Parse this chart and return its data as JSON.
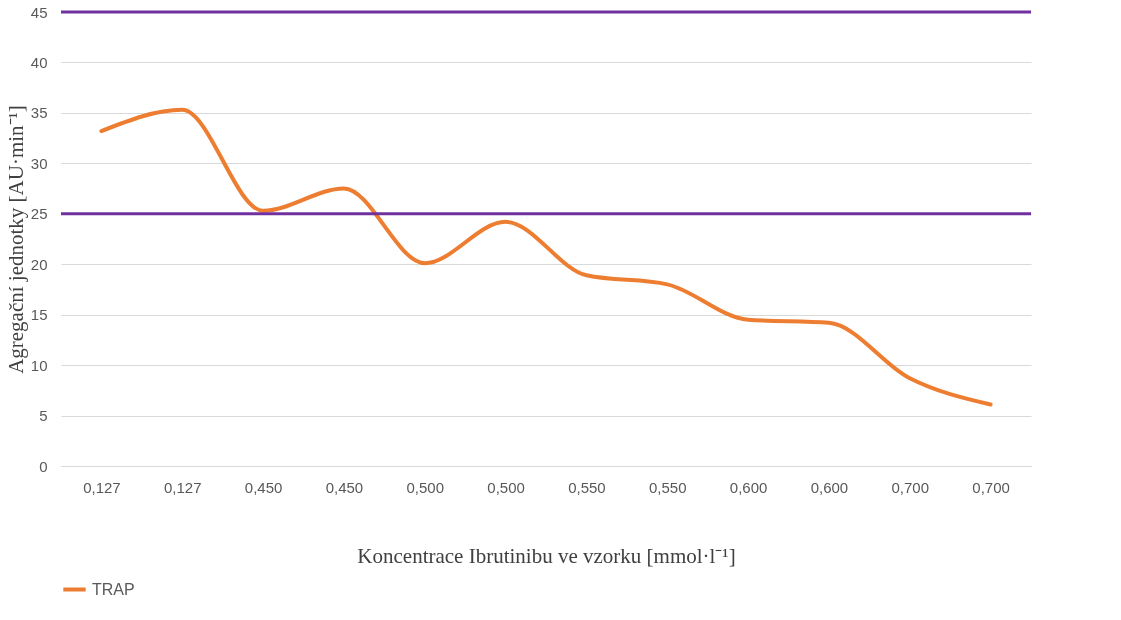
{
  "chart_data": {
    "type": "line",
    "xlabel": "Koncentrace Ibrutinibu ve vzorku [mmol·l⁻¹]",
    "ylabel": "Agregační jednotky [AU·min⁻¹]",
    "categories": [
      "0,127",
      "0,127",
      "0,450",
      "0,450",
      "0,500",
      "0,500",
      "0,550",
      "0,550",
      "0,600",
      "0,600",
      "0,700",
      "0,700"
    ],
    "series": [
      {
        "name": "TRAP",
        "color": "#ed7d31",
        "values": [
          33.2,
          35.3,
          25.3,
          27.5,
          20.1,
          24.2,
          18.9,
          18.0,
          14.5,
          14.2,
          8.7,
          6.1
        ]
      }
    ],
    "ylim": [
      0,
      45
    ],
    "yticks": [
      0,
      5,
      10,
      15,
      20,
      25,
      30,
      35,
      40,
      45
    ],
    "grid": "y",
    "legend": "bottom",
    "line_style": "solid",
    "marker": "none",
    "ref_lines": [
      {
        "axis": "y",
        "value": 45,
        "color": "#7030a0"
      },
      {
        "axis": "y",
        "value": 25,
        "color": "#7030a0"
      }
    ]
  }
}
